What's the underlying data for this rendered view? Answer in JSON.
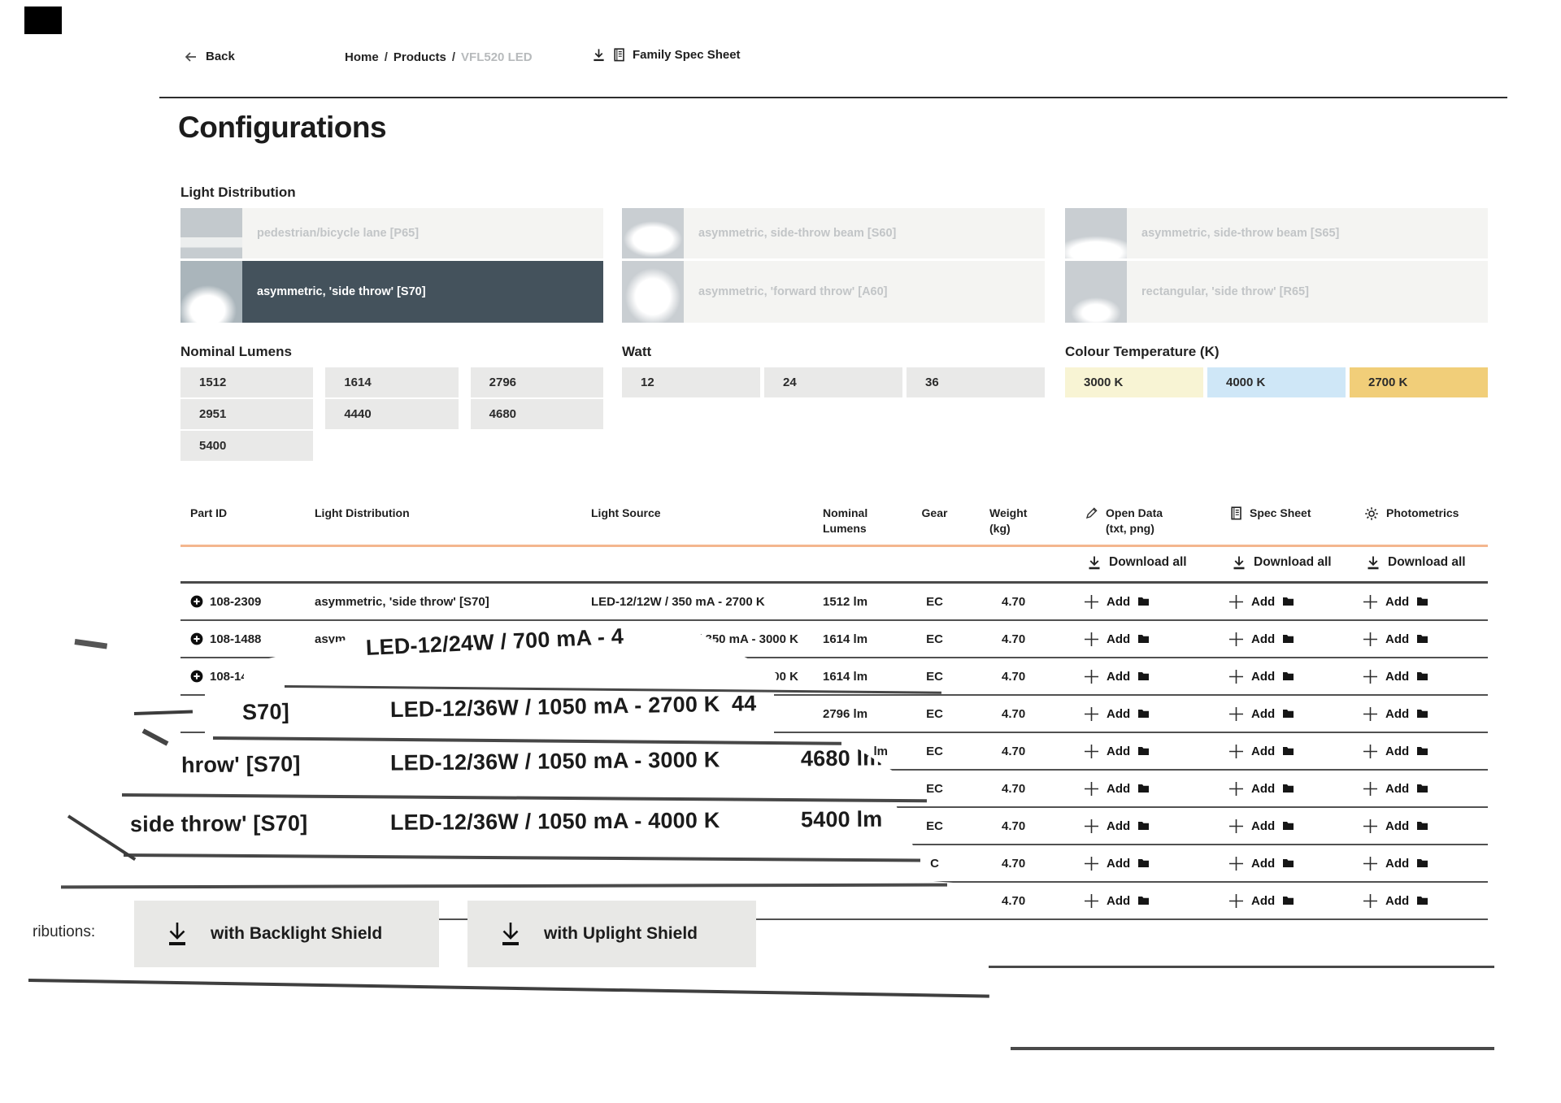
{
  "header": {
    "back_label": "Back",
    "breadcrumb": {
      "items": [
        "Home",
        "Products",
        "VFL520 LED"
      ],
      "separator": "/"
    },
    "family_spec_sheet_label": "Family Spec Sheet"
  },
  "page_title": "Configurations",
  "light_distribution": {
    "label": "Light Distribution",
    "options": [
      {
        "label": "pedestrian/bicycle lane [P65]",
        "state": "disabled"
      },
      {
        "label": "asymmetric, 'side throw' [S70]",
        "state": "selected"
      },
      {
        "label": "asymmetric, side-throw beam [S60]",
        "state": "disabled"
      },
      {
        "label": "asymmetric, 'forward throw' [A60]",
        "state": "disabled"
      },
      {
        "label": "asymmetric, side-throw beam [S65]",
        "state": "disabled"
      },
      {
        "label": "rectangular, 'side throw' [R65]",
        "state": "disabled"
      }
    ]
  },
  "nominal_lumens": {
    "label": "Nominal Lumens",
    "options": [
      "1512",
      "1614",
      "2796",
      "2951",
      "4440",
      "4680",
      "5400"
    ]
  },
  "watt": {
    "label": "Watt",
    "options": [
      "12",
      "24",
      "36"
    ]
  },
  "colour_temperature": {
    "label": "Colour Temperature (K)",
    "options": [
      {
        "label": "3000 K",
        "color": "#f8f4d4"
      },
      {
        "label": "4000 K",
        "color": "#cfe7f7"
      },
      {
        "label": "2700 K",
        "color": "#f1ce79"
      }
    ]
  },
  "table": {
    "columns": [
      {
        "label": "Part ID"
      },
      {
        "label": "Light Distribution"
      },
      {
        "label": "Light Source"
      },
      {
        "label": "Nominal\nLumens"
      },
      {
        "label": "Gear"
      },
      {
        "label": "Weight\n(kg)"
      },
      {
        "label": "Open Data\n(txt, png)",
        "icon": "pencil-icon"
      },
      {
        "label": "Spec Sheet",
        "icon": "spec-sheet-icon"
      },
      {
        "label": "Photometrics",
        "icon": "photometrics-icon"
      }
    ],
    "download_all_label": "Download all",
    "add_label": "Add",
    "rows": [
      {
        "part_id": "108-2309",
        "light_distribution": "asymmetric, 'side throw' [S70]",
        "light_source": "LED-12/12W / 350 mA - 2700 K",
        "nominal_lumens": "1512 lm",
        "gear": "EC",
        "weight": "4.70"
      },
      {
        "part_id": "108-1488",
        "light_distribution": "asym",
        "light_source": "W / 350 mA - 3000 K",
        "ls_right": true,
        "nominal_lumens": "1614 lm",
        "gear": "EC",
        "weight": "4.70"
      },
      {
        "part_id": "108-14",
        "light_distribution": "",
        "light_source": "4000 K",
        "ls_right": true,
        "nominal_lumens": "1614 lm",
        "gear": "EC",
        "weight": "4.70"
      },
      {
        "part_id": "",
        "light_distribution": "",
        "light_source": "",
        "nominal_lumens": "2796 lm",
        "gear": "EC",
        "weight": "4.70"
      },
      {
        "part_id": "",
        "light_distribution": "",
        "light_source": "",
        "nominal_lumens": "lm",
        "lum_right": true,
        "gear": "EC",
        "weight": "4.70"
      },
      {
        "part_id": "",
        "light_distribution": "",
        "light_source": "",
        "nominal_lumens": "",
        "gear": "EC",
        "weight": "4.70"
      },
      {
        "part_id": "",
        "light_distribution": "",
        "light_source": "",
        "nominal_lumens": "",
        "gear": "EC",
        "weight": "4.70"
      },
      {
        "part_id": "",
        "light_distribution": "",
        "light_source": "",
        "nominal_lumens": "",
        "gear": "C",
        "weight": "4.70"
      },
      {
        "part_id": "",
        "light_distribution": "",
        "light_source": "",
        "nominal_lumens": "",
        "gear": "",
        "weight": "4.70"
      }
    ]
  },
  "overlay_rows": {
    "a": {
      "light_source": "LED-12/24W / 700 mA - 4"
    },
    "b": {
      "light_distribution": "S70]",
      "light_source": "LED-12/36W / 1050 mA - 2700 K",
      "nominal_lumens": "44"
    },
    "c": {
      "light_distribution": "hrow' [S70]",
      "light_source": "LED-12/36W / 1050 mA - 3000 K",
      "nominal_lumens": "4680 lm"
    },
    "d": {
      "light_distribution": "side throw' [S70]",
      "light_source": "LED-12/36W / 1050 mA - 4000 K",
      "nominal_lumens": "5400 lm"
    }
  },
  "footer": {
    "label_fragment": "ributions:",
    "buttons": [
      {
        "label": "with Backlight Shield"
      },
      {
        "label": "with Uplight Shield"
      }
    ]
  }
}
